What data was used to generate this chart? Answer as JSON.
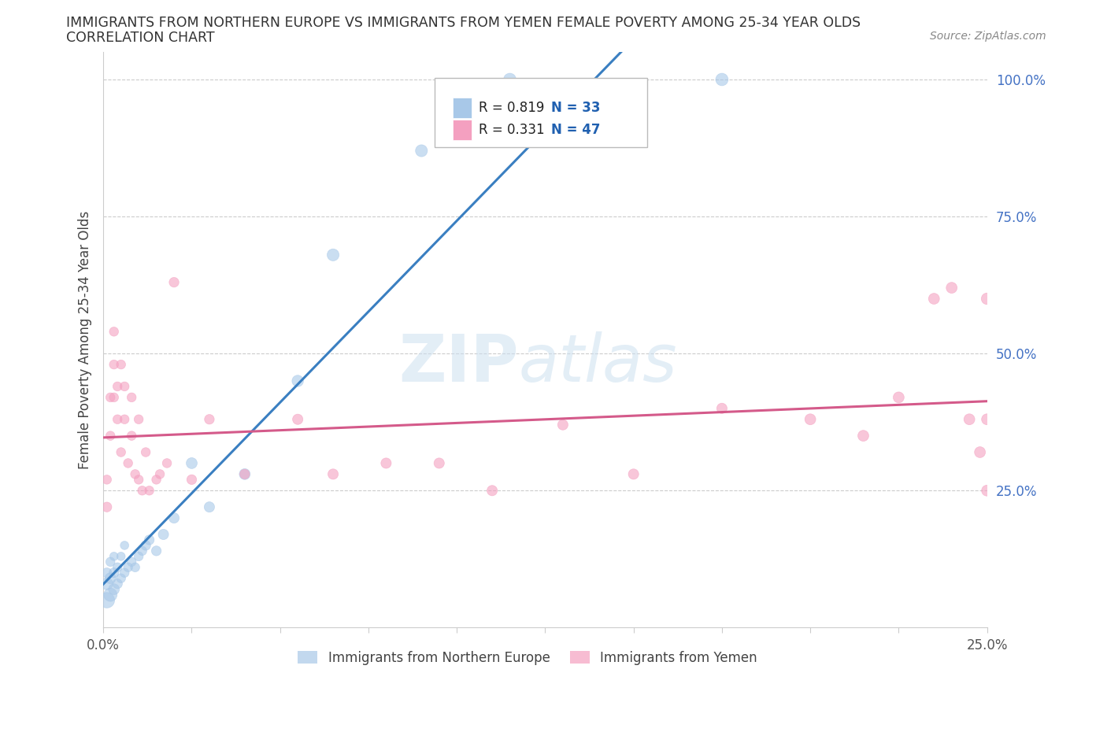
{
  "title_line1": "IMMIGRANTS FROM NORTHERN EUROPE VS IMMIGRANTS FROM YEMEN FEMALE POVERTY AMONG 25-34 YEAR OLDS",
  "title_line2": "CORRELATION CHART",
  "source_text": "Source: ZipAtlas.com",
  "ylabel": "Female Poverty Among 25-34 Year Olds",
  "watermark": "ZIPatlas",
  "blue_R": 0.819,
  "blue_N": 33,
  "pink_R": 0.331,
  "pink_N": 47,
  "blue_color": "#a8c8e8",
  "pink_color": "#f4a0c0",
  "blue_line_color": "#3a7fc1",
  "pink_line_color": "#d45a8a",
  "blue_scatter": {
    "x": [
      0.001,
      0.001,
      0.001,
      0.002,
      0.002,
      0.002,
      0.003,
      0.003,
      0.003,
      0.004,
      0.004,
      0.005,
      0.005,
      0.006,
      0.006,
      0.007,
      0.008,
      0.009,
      0.01,
      0.011,
      0.012,
      0.013,
      0.015,
      0.017,
      0.02,
      0.025,
      0.03,
      0.04,
      0.055,
      0.065,
      0.09,
      0.115,
      0.175
    ],
    "y": [
      0.05,
      0.08,
      0.1,
      0.06,
      0.09,
      0.12,
      0.07,
      0.1,
      0.13,
      0.08,
      0.11,
      0.09,
      0.13,
      0.1,
      0.15,
      0.11,
      0.12,
      0.11,
      0.13,
      0.14,
      0.15,
      0.16,
      0.14,
      0.17,
      0.2,
      0.3,
      0.22,
      0.28,
      0.45,
      0.68,
      0.87,
      1.0,
      1.0
    ],
    "sizes": [
      200,
      120,
      80,
      150,
      100,
      70,
      100,
      80,
      60,
      80,
      70,
      70,
      60,
      70,
      60,
      70,
      70,
      70,
      70,
      70,
      80,
      80,
      80,
      90,
      90,
      100,
      90,
      100,
      110,
      120,
      120,
      130,
      130
    ]
  },
  "pink_scatter": {
    "x": [
      0.001,
      0.001,
      0.002,
      0.002,
      0.003,
      0.003,
      0.003,
      0.004,
      0.004,
      0.005,
      0.005,
      0.006,
      0.006,
      0.007,
      0.008,
      0.008,
      0.009,
      0.01,
      0.01,
      0.011,
      0.012,
      0.013,
      0.015,
      0.016,
      0.018,
      0.02,
      0.025,
      0.03,
      0.04,
      0.055,
      0.065,
      0.08,
      0.095,
      0.11,
      0.13,
      0.15,
      0.175,
      0.2,
      0.215,
      0.225,
      0.235,
      0.24,
      0.245,
      0.248,
      0.25,
      0.25,
      0.25
    ],
    "y": [
      0.22,
      0.27,
      0.35,
      0.42,
      0.42,
      0.48,
      0.54,
      0.38,
      0.44,
      0.32,
      0.48,
      0.38,
      0.44,
      0.3,
      0.35,
      0.42,
      0.28,
      0.27,
      0.38,
      0.25,
      0.32,
      0.25,
      0.27,
      0.28,
      0.3,
      0.63,
      0.27,
      0.38,
      0.28,
      0.38,
      0.28,
      0.3,
      0.3,
      0.25,
      0.37,
      0.28,
      0.4,
      0.38,
      0.35,
      0.42,
      0.6,
      0.62,
      0.38,
      0.32,
      0.25,
      0.38,
      0.6
    ],
    "sizes": [
      80,
      70,
      70,
      70,
      70,
      70,
      70,
      70,
      70,
      70,
      70,
      70,
      70,
      70,
      70,
      70,
      70,
      70,
      70,
      70,
      70,
      70,
      70,
      70,
      70,
      80,
      80,
      80,
      80,
      90,
      90,
      90,
      90,
      90,
      90,
      90,
      90,
      100,
      100,
      100,
      100,
      100,
      100,
      100,
      100,
      100,
      110
    ]
  },
  "xlim": [
    0,
    0.25
  ],
  "ylim": [
    0,
    1.05
  ],
  "xtick_positions": [
    0,
    0.025,
    0.05,
    0.075,
    0.1,
    0.125,
    0.15,
    0.175,
    0.2,
    0.225,
    0.25
  ],
  "xtick_labels_show": {
    "0": "0.0%",
    "0.25": "25.0%"
  },
  "yticks_right": [
    0.0,
    0.25,
    0.5,
    0.75,
    1.0
  ],
  "ytick_labels_right": [
    "",
    "25.0%",
    "50.0%",
    "75.0%",
    "100.0%"
  ],
  "grid_color": "#cccccc",
  "background_color": "#ffffff",
  "axis_color": "#cccccc"
}
